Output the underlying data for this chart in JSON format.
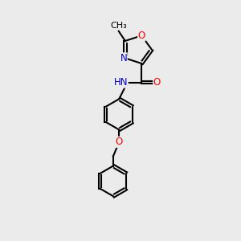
{
  "background_color": "#ebebeb",
  "bond_color": "#000000",
  "bond_width": 1.5,
  "atom_colors": {
    "O": "#ff0000",
    "N": "#0000cd",
    "C": "#000000"
  },
  "font_size": 8.5,
  "fig_size": [
    3.0,
    3.0
  ],
  "dpi": 100,
  "xlim": [
    0,
    10
  ],
  "ylim": [
    0,
    10
  ]
}
